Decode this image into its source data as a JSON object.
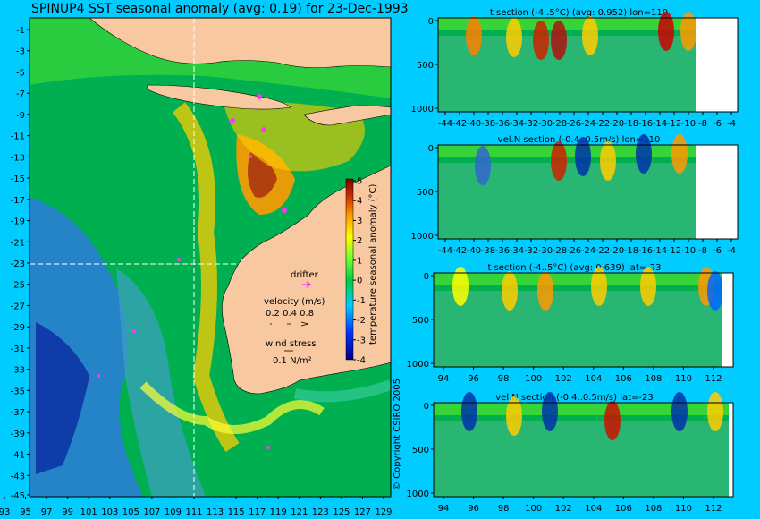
{
  "chart_data": [
    {
      "type": "heatmap",
      "title": "SPINUP4 SST seasonal anomaly (avg: 0.19) for 23-Dec-1993",
      "x_ticks": [
        "93",
        "95",
        "97",
        "99",
        "101",
        "103",
        "105",
        "107",
        "109",
        "111",
        "113",
        "115",
        "117",
        "119",
        "121",
        "123",
        "125",
        "127",
        "129"
      ],
      "y_ticks": [
        "-1",
        "-3",
        "-5",
        "-7",
        "-9",
        "-11",
        "-13",
        "-15",
        "-17",
        "-19",
        "-21",
        "-23",
        "-25",
        "-27",
        "-29",
        "-31",
        "-33",
        "-35",
        "-37",
        "-39",
        "-41",
        "-43",
        "-45"
      ],
      "xlim": [
        93,
        130
      ],
      "ylim": [
        -45,
        0
      ],
      "colorbar": {
        "label": "temperature seasonal anomaly (°C)",
        "ticks": [
          "5",
          "4",
          "3",
          "2",
          "1",
          "0",
          "-1",
          "-2",
          "-3",
          "-4"
        ],
        "range": [
          -4,
          5
        ]
      },
      "section_lines": {
        "lon": 110,
        "lat": -23
      },
      "legend": {
        "drifter_label": "drifter",
        "velocity_label": "velocity (m/s)",
        "velocity_values": "0.2 0.4 0.8",
        "wind_label": "wind stress",
        "wind_value": "0.1 N/m²"
      },
      "colors": {
        "land": "#f8c8a0",
        "drifter": "#ff33ff",
        "ocean_mid": "#00cc44",
        "warm": "#ff7f00",
        "cold": "#0033cc"
      }
    },
    {
      "type": "heatmap",
      "title": "t section (-4..5°C) (avg: 0.952) lon=110",
      "x_ticks": [
        "-44",
        "-42",
        "-40",
        "-38",
        "-36",
        "-34",
        "-32",
        "-30",
        "-28",
        "-26",
        "-24",
        "-22",
        "-20",
        "-18",
        "-16",
        "-14",
        "-12",
        "-10",
        "-8",
        "-6",
        "-4"
      ],
      "y_ticks": [
        "0",
        "500",
        "1000"
      ],
      "xlabel": "",
      "ylabel": ""
    },
    {
      "type": "heatmap",
      "title": "vel.N section (-0.4..0.5m/s) lon=110",
      "x_ticks": [
        "-44",
        "-42",
        "-40",
        "-38",
        "-36",
        "-34",
        "-32",
        "-30",
        "-28",
        "-26",
        "-24",
        "-22",
        "-20",
        "-18",
        "-16",
        "-14",
        "-12",
        "-10",
        "-8",
        "-6",
        "-4"
      ],
      "y_ticks": [
        "0",
        "500",
        "1000"
      ]
    },
    {
      "type": "heatmap",
      "title": "t section (-4..5°C) (avg: 0.639) lat=-23",
      "x_ticks": [
        "94",
        "96",
        "98",
        "100",
        "102",
        "104",
        "106",
        "108",
        "110",
        "112"
      ],
      "y_ticks": [
        "0",
        "500",
        "1000"
      ]
    },
    {
      "type": "heatmap",
      "title": "vel.N section (-0.4..0.5m/s) lat=-23",
      "x_ticks": [
        "94",
        "96",
        "98",
        "100",
        "102",
        "104",
        "106",
        "108",
        "110",
        "112"
      ],
      "y_ticks": [
        "0",
        "500",
        "1000"
      ]
    }
  ],
  "copyright": "© Copyright CSIRO 2005"
}
